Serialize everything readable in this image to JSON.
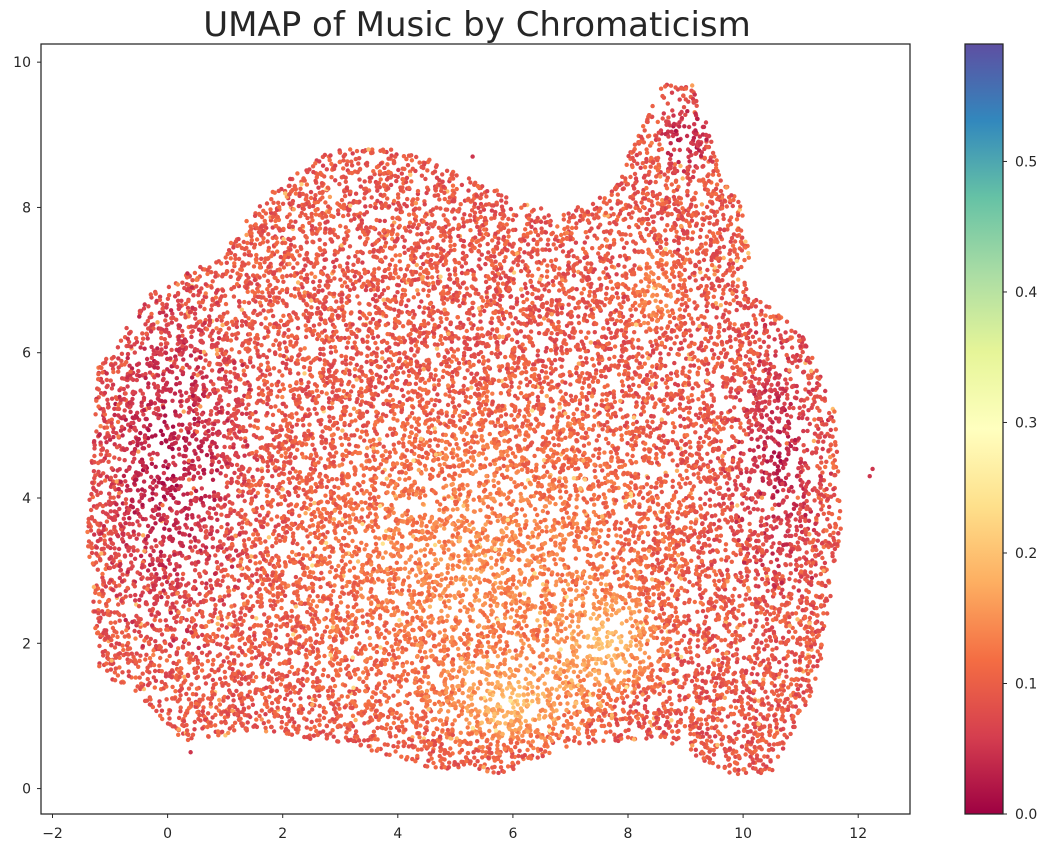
{
  "chart_data": {
    "type": "scatter",
    "title": "UMAP of Music by Chromaticism",
    "xlabel": "",
    "ylabel": "",
    "xlim": [
      -2.2,
      12.9
    ],
    "ylim": [
      -0.35,
      10.25
    ],
    "x_ticks": [
      {
        "value": -2,
        "label": "−2"
      },
      {
        "value": 0,
        "label": "0"
      },
      {
        "value": 2,
        "label": "2"
      },
      {
        "value": 4,
        "label": "4"
      },
      {
        "value": 6,
        "label": "6"
      },
      {
        "value": 8,
        "label": "8"
      },
      {
        "value": 10,
        "label": "10"
      },
      {
        "value": 12,
        "label": "12"
      }
    ],
    "y_ticks": [
      {
        "value": 0,
        "label": "0"
      },
      {
        "value": 2,
        "label": "2"
      },
      {
        "value": 4,
        "label": "4"
      },
      {
        "value": 6,
        "label": "6"
      },
      {
        "value": 8,
        "label": "8"
      },
      {
        "value": 10,
        "label": "10"
      }
    ],
    "colorbar": {
      "colormap": "Spectral",
      "range": [
        0.0,
        0.59
      ],
      "ticks": [
        {
          "value": 0.0,
          "label": "0.0"
        },
        {
          "value": 0.1,
          "label": "0.1"
        },
        {
          "value": 0.2,
          "label": "0.2"
        },
        {
          "value": 0.3,
          "label": "0.3"
        },
        {
          "value": 0.4,
          "label": "0.4"
        },
        {
          "value": 0.5,
          "label": "0.5"
        }
      ]
    },
    "grid": false,
    "point_cloud_outline": [
      [
        -1.2,
        5.8
      ],
      [
        -0.3,
        6.8
      ],
      [
        0.8,
        7.3
      ],
      [
        1.8,
        8.2
      ],
      [
        2.8,
        8.8
      ],
      [
        4.2,
        8.8
      ],
      [
        5.5,
        8.3
      ],
      [
        6.8,
        7.9
      ],
      [
        7.7,
        8.2
      ],
      [
        8.6,
        9.7
      ],
      [
        9.2,
        9.7
      ],
      [
        9.6,
        8.5
      ],
      [
        10.0,
        8.0
      ],
      [
        10.2,
        6.8
      ],
      [
        11.0,
        6.3
      ],
      [
        11.6,
        5.2
      ],
      [
        11.7,
        3.6
      ],
      [
        11.3,
        1.5
      ],
      [
        10.5,
        0.2
      ],
      [
        9.8,
        0.2
      ],
      [
        8.5,
        0.7
      ],
      [
        7.0,
        0.6
      ],
      [
        5.8,
        0.2
      ],
      [
        4.5,
        0.3
      ],
      [
        3.2,
        0.6
      ],
      [
        1.5,
        0.8
      ],
      [
        0.3,
        0.6
      ],
      [
        -0.5,
        1.3
      ],
      [
        -1.2,
        1.6
      ],
      [
        -1.4,
        3.5
      ],
      [
        -1.3,
        4.8
      ]
    ],
    "isolated_points": [
      [
        0.4,
        0.5
      ],
      [
        5.3,
        8.7
      ],
      [
        12.2,
        4.3
      ],
      [
        12.25,
        4.4
      ]
    ],
    "value_regions": [
      {
        "center": [
          0.0,
          4.5
        ],
        "radius": [
          1.6,
          2.8
        ],
        "value": 0.02
      },
      {
        "center": [
          6.0,
          1.2
        ],
        "radius": [
          1.6,
          0.8
        ],
        "value": 0.2
      },
      {
        "center": [
          7.6,
          2.0
        ],
        "radius": [
          1.2,
          1.0
        ],
        "value": 0.2
      },
      {
        "center": [
          8.5,
          6.8
        ],
        "radius": [
          0.6,
          0.8
        ],
        "value": 0.15
      },
      {
        "center": [
          10.6,
          4.5
        ],
        "radius": [
          1.0,
          2.0
        ],
        "value": 0.03
      },
      {
        "center": [
          9.0,
          9.0
        ],
        "radius": [
          0.6,
          0.6
        ],
        "value": 0.02
      }
    ],
    "point_count": 16000
  }
}
